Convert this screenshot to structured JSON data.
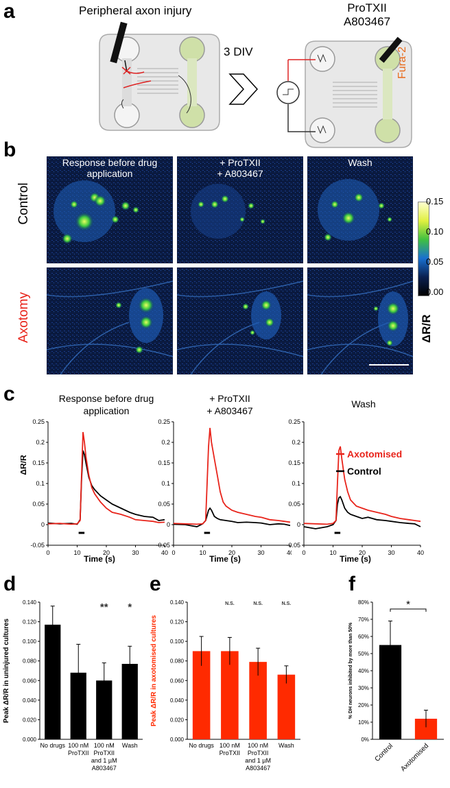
{
  "panels": {
    "a": "a",
    "b": "b",
    "c": "c",
    "d": "d",
    "e": "e",
    "f": "f"
  },
  "panel_a": {
    "left_title": "Peripheral axon injury",
    "middle_text": "+ 3 DIV",
    "right_title_1": "ProTXII",
    "right_title_2": "A803467",
    "fura_label": "Fura-2"
  },
  "panel_b": {
    "col1": "Response before drug application",
    "col2_1": "+ ProTXII",
    "col2_2": "+ A803467",
    "col3": "Wash",
    "row1": "Control",
    "row2": "Axotomy",
    "colorbar_ticks": [
      "0.15",
      "0.10",
      "0.05",
      "0.00"
    ],
    "colorbar_label": "ΔR/R",
    "colors": {
      "control": "#000000",
      "axotomy": "#e8231a"
    }
  },
  "panel_c": {
    "titles": [
      "Response before drug application",
      "+ ProTXII\n+ A803467",
      "Wash"
    ],
    "title1_line1": "Response before drug",
    "title1_line2": "application",
    "title2_line1": "+ ProTXII",
    "title2_line2": "+ A803467",
    "title3": "Wash",
    "ylabel": "ΔR/R",
    "xlabel": "Time (s)",
    "legend": [
      "Axotomised",
      "Control"
    ],
    "legend_axotomised": "Axotomised",
    "legend_control": "Control",
    "yticks": [
      "0.25",
      "0.2",
      "0.15",
      "0.1",
      "0.05",
      "0",
      "-0.05"
    ],
    "xticks": [
      "0",
      "10",
      "20",
      "30",
      "40"
    ]
  },
  "chart_data": [
    {
      "type": "line",
      "title": "Response before drug application",
      "xlabel": "Time (s)",
      "ylabel": "ΔR/R",
      "xlim": [
        0,
        40
      ],
      "ylim": [
        -0.05,
        0.25
      ],
      "series": [
        {
          "name": "Axotomised",
          "color": "#e8231a",
          "x": [
            0,
            4,
            8,
            10,
            11,
            11.5,
            12,
            12.5,
            13,
            14,
            15,
            16,
            18,
            20,
            22,
            25,
            28,
            30,
            33,
            36,
            38,
            40
          ],
          "y": [
            0.002,
            0.003,
            0.001,
            0.002,
            0.01,
            0.12,
            0.225,
            0.2,
            0.165,
            0.12,
            0.09,
            0.075,
            0.055,
            0.04,
            0.03,
            0.025,
            0.018,
            0.012,
            0.01,
            0.008,
            0.005,
            0.006
          ]
        },
        {
          "name": "Control",
          "color": "#000000",
          "x": [
            0,
            4,
            8,
            10,
            11,
            11.5,
            12,
            12.5,
            13,
            14,
            15,
            16,
            18,
            20,
            22,
            25,
            28,
            30,
            33,
            36,
            38,
            40
          ],
          "y": [
            0.004,
            0.002,
            0.003,
            0.001,
            0.012,
            0.11,
            0.18,
            0.17,
            0.15,
            0.115,
            0.095,
            0.085,
            0.07,
            0.06,
            0.05,
            0.04,
            0.03,
            0.025,
            0.02,
            0.018,
            0.01,
            0.012
          ]
        }
      ]
    },
    {
      "type": "line",
      "title": "+ ProTXII + A803467",
      "xlabel": "Time (s)",
      "ylabel": "ΔR/R",
      "xlim": [
        0,
        40
      ],
      "ylim": [
        -0.05,
        0.25
      ],
      "series": [
        {
          "name": "Axotomised",
          "color": "#e8231a",
          "x": [
            0,
            4,
            8,
            10,
            11,
            11.5,
            12,
            12.5,
            13,
            14,
            15,
            16,
            17,
            18,
            20,
            22,
            25,
            28,
            30,
            33,
            36,
            38,
            40
          ],
          "y": [
            0.003,
            0.002,
            0.001,
            0.002,
            0.01,
            0.1,
            0.19,
            0.235,
            0.2,
            0.16,
            0.12,
            0.08,
            0.055,
            0.045,
            0.035,
            0.03,
            0.025,
            0.02,
            0.018,
            0.012,
            0.01,
            0.008,
            0.006
          ]
        },
        {
          "name": "Control",
          "color": "#000000",
          "x": [
            0,
            4,
            8,
            10,
            11,
            12,
            12.5,
            13,
            14,
            15,
            16,
            18,
            20,
            22,
            25,
            28,
            30,
            33,
            36,
            38,
            40
          ],
          "y": [
            0.001,
            0.0,
            -0.005,
            0.002,
            0.01,
            0.035,
            0.04,
            0.035,
            0.02,
            0.015,
            0.012,
            0.01,
            0.008,
            0.005,
            0.006,
            0.005,
            0.004,
            0.0,
            0.002,
            0.001,
            -0.002
          ]
        }
      ]
    },
    {
      "type": "line",
      "title": "Wash",
      "xlabel": "Time (s)",
      "ylabel": "ΔR/R",
      "xlim": [
        0,
        40
      ],
      "ylim": [
        -0.05,
        0.25
      ],
      "series": [
        {
          "name": "Axotomised",
          "color": "#e8231a",
          "x": [
            0,
            4,
            8,
            10,
            11,
            11.5,
            12,
            12.5,
            13,
            14,
            15,
            16,
            18,
            20,
            22,
            25,
            28,
            30,
            33,
            36,
            38,
            40
          ],
          "y": [
            0.003,
            0.002,
            0.001,
            0.003,
            0.01,
            0.1,
            0.18,
            0.19,
            0.16,
            0.11,
            0.08,
            0.06,
            0.045,
            0.04,
            0.035,
            0.03,
            0.025,
            0.02,
            0.015,
            0.012,
            0.01,
            0.008
          ]
        },
        {
          "name": "Control",
          "color": "#000000",
          "x": [
            0,
            4,
            8,
            10,
            11,
            11.5,
            12,
            12.5,
            13,
            14,
            15,
            16,
            18,
            20,
            22,
            25,
            28,
            30,
            33,
            36,
            38,
            40
          ],
          "y": [
            -0.005,
            -0.01,
            -0.005,
            0.0,
            0.01,
            0.05,
            0.065,
            0.068,
            0.06,
            0.04,
            0.03,
            0.025,
            0.02,
            0.015,
            0.018,
            0.012,
            0.01,
            0.008,
            0.005,
            0.003,
            0.002,
            -0.005
          ]
        }
      ]
    },
    {
      "type": "bar",
      "ylabel": "Peak ΔR/R in uninjured cultures",
      "categories": [
        "No drugs",
        "100 nM ProTXII",
        "100 nM ProTXII and 1 µM A803467",
        "Wash"
      ],
      "values": [
        0.117,
        0.068,
        0.06,
        0.077
      ],
      "errors": [
        0.019,
        0.029,
        0.018,
        0.018
      ],
      "significance": [
        "",
        "",
        "**",
        "*"
      ],
      "color": "#000000",
      "ylim": [
        0,
        0.14
      ],
      "yticks": [
        "0.000",
        "0.020",
        "0.040",
        "0.060",
        "0.080",
        "0.100",
        "0.120",
        "0.140"
      ]
    },
    {
      "type": "bar",
      "ylabel": "Peak ΔR/R in axotomised cultures",
      "categories": [
        "No drugs",
        "100 nM ProTXII",
        "100 nM ProTXII and 1 µM A803467",
        "Wash"
      ],
      "values": [
        0.09,
        0.09,
        0.079,
        0.066
      ],
      "errors": [
        0.015,
        0.014,
        0.014,
        0.009
      ],
      "significance": [
        "",
        "N.S.",
        "N.S.",
        "N.S."
      ],
      "color": "#ff2a00",
      "ylim": [
        0,
        0.14
      ],
      "yticks": [
        "0.000",
        "0.020",
        "0.040",
        "0.060",
        "0.080",
        "0.100",
        "0.120",
        "0.140"
      ]
    },
    {
      "type": "bar",
      "ylabel": "% DH neurons inhibited by more than 50%",
      "categories": [
        "Control",
        "Axotomised"
      ],
      "values": [
        55,
        12
      ],
      "errors": [
        14,
        5
      ],
      "colors": [
        "#000000",
        "#ff2a00"
      ],
      "significance_bracket": "*",
      "ylim": [
        0,
        80
      ],
      "yticks": [
        "0%",
        "10%",
        "20%",
        "30%",
        "40%",
        "50%",
        "60%",
        "70%",
        "80%"
      ]
    }
  ]
}
